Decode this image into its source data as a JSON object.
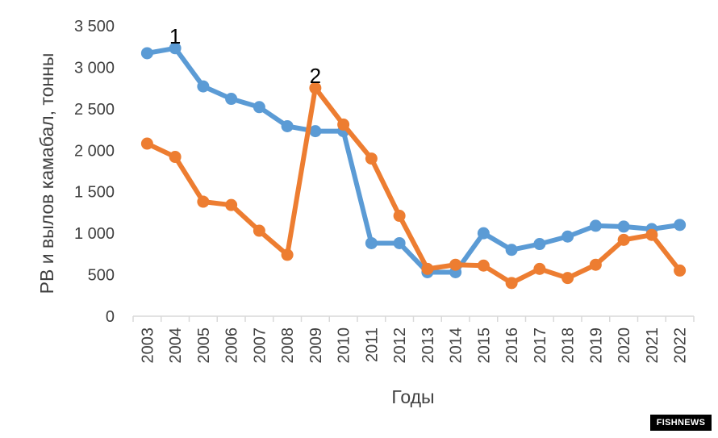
{
  "chart_data": {
    "type": "line",
    "title": "",
    "xlabel": "Годы",
    "ylabel": "РВ  и вылов камабал, тонны",
    "ylim": [
      0,
      3500
    ],
    "y_ticks": [
      0,
      500,
      1000,
      1500,
      2000,
      2500,
      3000,
      3500
    ],
    "y_tick_labels": [
      "0",
      "500",
      "1 000",
      "1 500",
      "2 000",
      "2 500",
      "3 000",
      "3 500"
    ],
    "categories": [
      "2003",
      "2004",
      "2005",
      "2006",
      "2007",
      "2008",
      "2009",
      "2010",
      "2011",
      "2012",
      "2013",
      "2014",
      "2015",
      "2016",
      "2017",
      "2018",
      "2019",
      "2020",
      "2021",
      "2022"
    ],
    "grid": false,
    "legend": "none",
    "series": [
      {
        "label": "1",
        "color": "#5b9bd5",
        "values": [
          3170,
          3230,
          2770,
          2620,
          2520,
          2290,
          2230,
          2230,
          880,
          880,
          530,
          530,
          1000,
          800,
          870,
          960,
          1090,
          1080,
          1050,
          1100
        ]
      },
      {
        "label": "2",
        "color": "#ed7d31",
        "values": [
          2080,
          1920,
          1380,
          1340,
          1030,
          740,
          2750,
          2310,
          1900,
          1210,
          570,
          620,
          610,
          400,
          570,
          460,
          620,
          920,
          980,
          550
        ]
      }
    ]
  },
  "watermark": "FISHNEWS"
}
